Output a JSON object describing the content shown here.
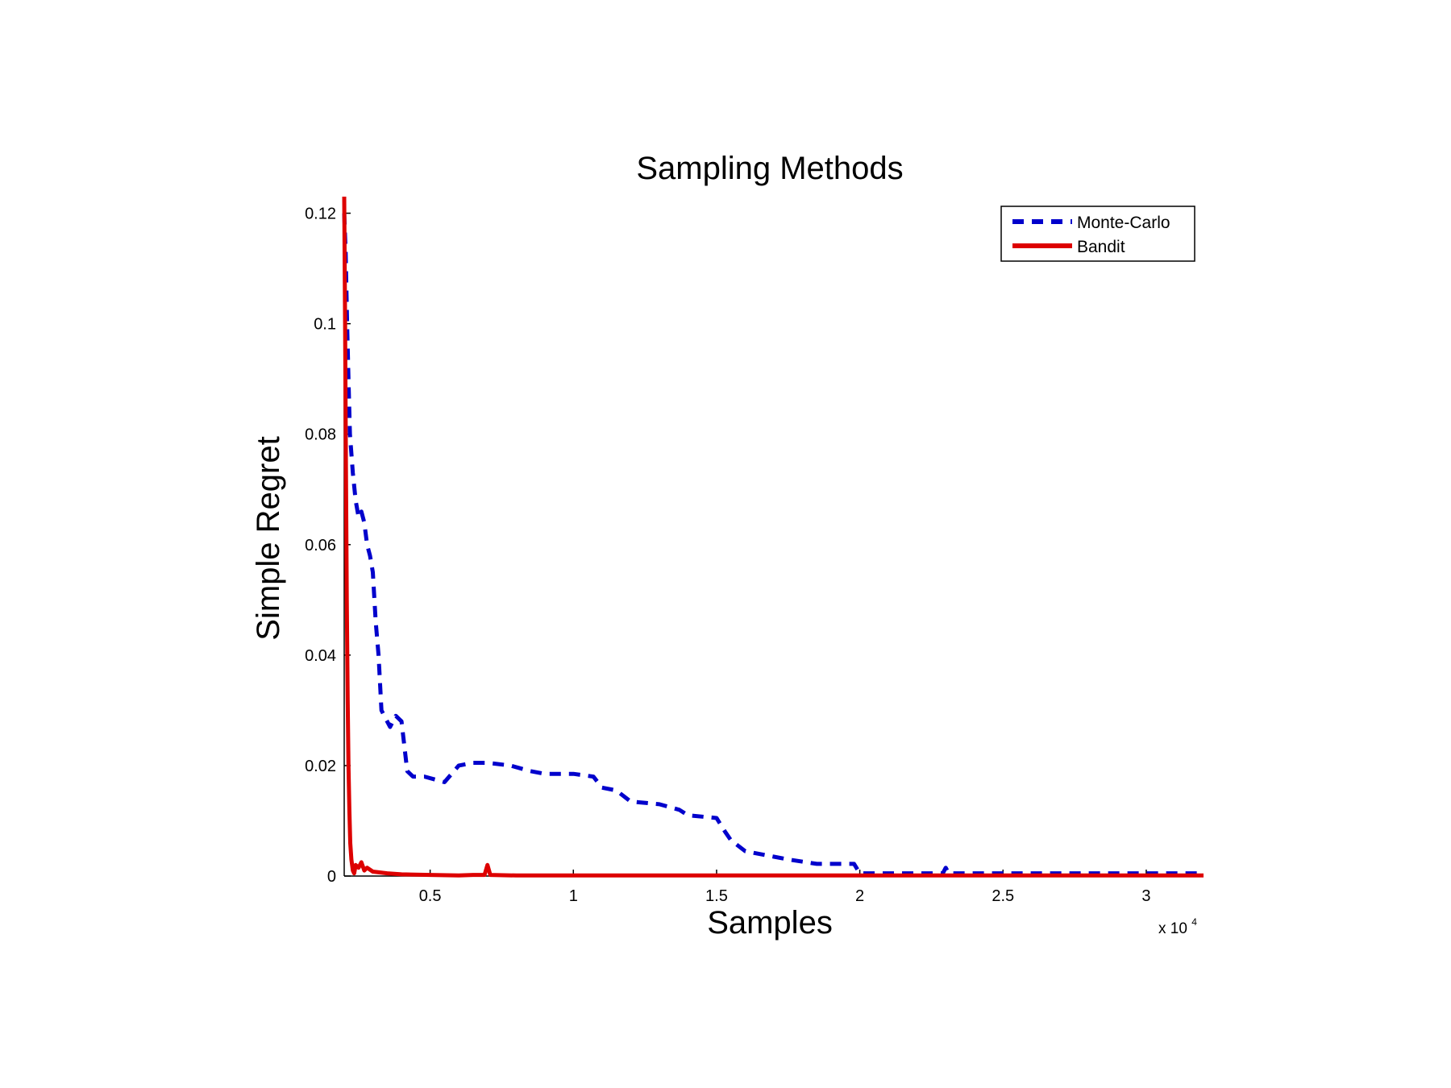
{
  "chart_data": {
    "type": "line",
    "title": "Sampling Methods",
    "xlabel": "Samples",
    "ylabel": "Simple Regret",
    "x_multiplier_base": "x 10",
    "x_multiplier_exp": "4",
    "xlim": [
      0.2,
      3.2
    ],
    "ylim": [
      0,
      0.123
    ],
    "xticks": [
      0.5,
      1,
      1.5,
      2,
      2.5,
      3
    ],
    "xtick_labels": [
      "0.5",
      "1",
      "1.5",
      "2",
      "2.5",
      "3"
    ],
    "yticks": [
      0,
      0.02,
      0.04,
      0.06,
      0.08,
      0.1,
      0.12
    ],
    "ytick_labels": [
      "0",
      "0.02",
      "0.04",
      "0.06",
      "0.08",
      "0.1",
      "0.12"
    ],
    "grid": false,
    "legend_position": "top-right",
    "series": [
      {
        "name": "Monte-Carlo",
        "color": "#0000cc",
        "style": "dashed",
        "x": [
          0.2,
          0.205,
          0.21,
          0.215,
          0.22,
          0.23,
          0.24,
          0.25,
          0.26,
          0.27,
          0.28,
          0.29,
          0.3,
          0.31,
          0.32,
          0.33,
          0.34,
          0.36,
          0.38,
          0.4,
          0.42,
          0.44,
          0.48,
          0.55,
          0.6,
          0.65,
          0.7,
          0.78,
          0.85,
          0.9,
          1.0,
          1.07,
          1.1,
          1.15,
          1.2,
          1.3,
          1.37,
          1.4,
          1.5,
          1.53,
          1.55,
          1.6,
          1.7,
          1.75,
          1.85,
          1.98,
          2.0,
          2.1,
          2.2,
          2.29,
          2.3,
          2.31,
          2.5,
          3.0,
          3.2
        ],
        "y": [
          0.12,
          0.113,
          0.1,
          0.09,
          0.08,
          0.073,
          0.068,
          0.065,
          0.066,
          0.064,
          0.06,
          0.058,
          0.055,
          0.046,
          0.04,
          0.03,
          0.029,
          0.027,
          0.029,
          0.028,
          0.019,
          0.018,
          0.018,
          0.017,
          0.02,
          0.0205,
          0.0205,
          0.02,
          0.019,
          0.0185,
          0.0185,
          0.018,
          0.016,
          0.0155,
          0.0135,
          0.013,
          0.012,
          0.011,
          0.0105,
          0.008,
          0.0065,
          0.0045,
          0.0035,
          0.003,
          0.0022,
          0.0022,
          0.0005,
          0.0005,
          0.0005,
          0.0005,
          0.0015,
          0.0005,
          0.0005,
          0.0005,
          0.0005
        ]
      },
      {
        "name": "Bandit",
        "color": "#dd0000",
        "style": "solid",
        "x": [
          0.2,
          0.203,
          0.206,
          0.209,
          0.212,
          0.215,
          0.218,
          0.221,
          0.225,
          0.23,
          0.235,
          0.24,
          0.25,
          0.26,
          0.27,
          0.28,
          0.3,
          0.35,
          0.4,
          0.5,
          0.6,
          0.65,
          0.69,
          0.7,
          0.71,
          0.8,
          1.0,
          1.5,
          2.0,
          2.5,
          3.0,
          3.2
        ],
        "y": [
          0.123,
          0.1,
          0.075,
          0.05,
          0.032,
          0.02,
          0.012,
          0.006,
          0.003,
          0.001,
          0.0005,
          0.002,
          0.0015,
          0.0025,
          0.001,
          0.0015,
          0.0008,
          0.0005,
          0.0003,
          0.0002,
          0.0001,
          0.0002,
          0.0002,
          0.002,
          0.0002,
          0.0001,
          0.0001,
          0.0001,
          0.0001,
          0.0001,
          0.0001,
          0.0001
        ]
      }
    ]
  }
}
